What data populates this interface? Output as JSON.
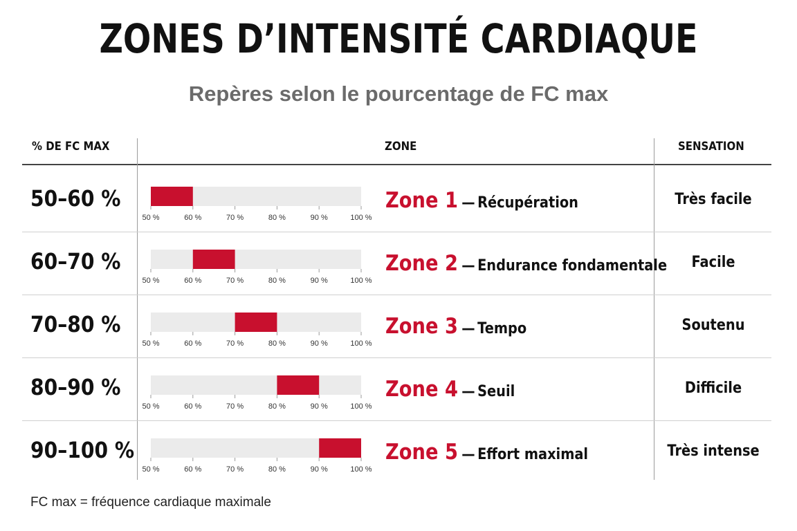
{
  "title": "ZONES D’INTENSITÉ CARDIAQUE",
  "subtitle": "Repères selon le pourcentage de FC max",
  "headers": {
    "pct": "% DE FC MAX",
    "zone": "ZONE",
    "sensation": "SENSATION"
  },
  "footnote": "FC max = fréquence cardiaque maximale",
  "colors": {
    "accent": "#c8102e",
    "track": "#ebebeb"
  },
  "chart_data": {
    "type": "bar",
    "axis_ticks": [
      "50 %",
      "60 %",
      "70 %",
      "80 %",
      "90 %",
      "100 %"
    ],
    "xlim": [
      50,
      100
    ],
    "rows": [
      {
        "range_label": "50–60 %",
        "zone": "Zone 1",
        "separator": "—",
        "description": "Récupération",
        "sensation": "Très facile",
        "start": 50,
        "end": 60
      },
      {
        "range_label": "60–70 %",
        "zone": "Zone 2",
        "separator": "—",
        "description": "Endurance fondamentale",
        "sensation": "Facile",
        "start": 60,
        "end": 70
      },
      {
        "range_label": "70–80 %",
        "zone": "Zone 3",
        "separator": "—",
        "description": "Tempo",
        "sensation": "Soutenu",
        "start": 70,
        "end": 80
      },
      {
        "range_label": "80–90 %",
        "zone": "Zone 4",
        "separator": "—",
        "description": "Seuil",
        "sensation": "Difficile",
        "start": 80,
        "end": 90
      },
      {
        "range_label": "90–100 %",
        "zone": "Zone 5",
        "separator": "—",
        "description": "Effort maximal",
        "sensation": "Très intense",
        "start": 90,
        "end": 100
      }
    ]
  }
}
